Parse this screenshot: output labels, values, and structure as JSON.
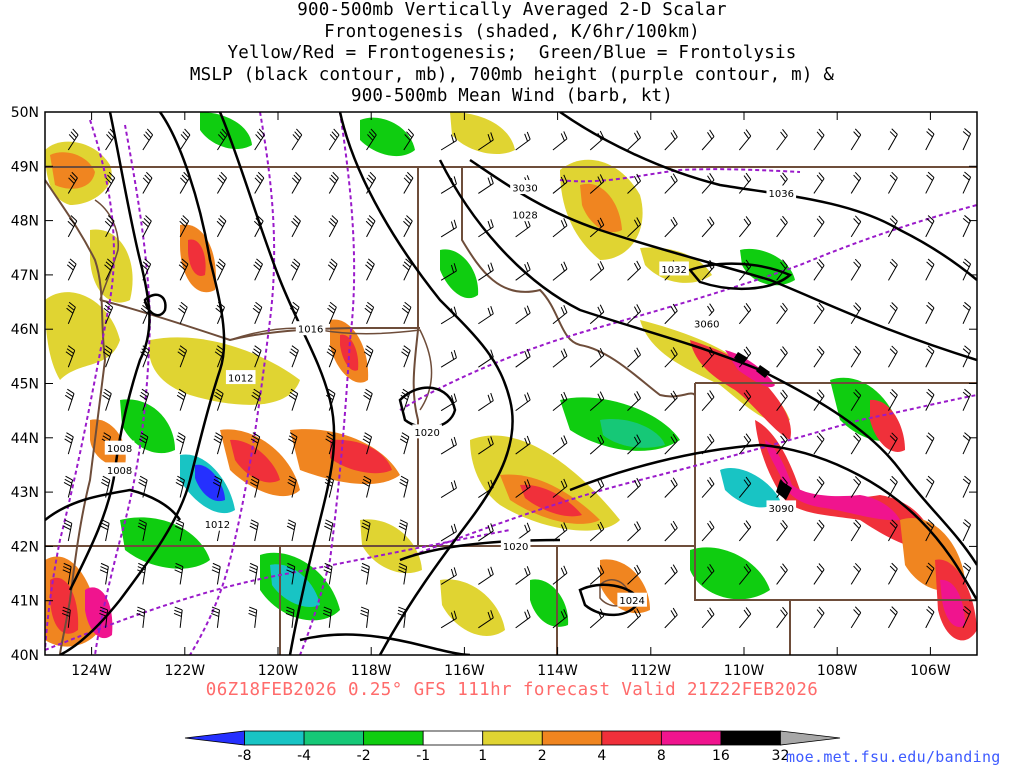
{
  "title": {
    "lines": [
      "900-500mb Vertically Averaged 2-D Scalar",
      "Frontogenesis (shaded, K/6hr/100km)",
      "Yellow/Red = Frontogenesis;  Green/Blue = Frontolysis",
      "MSLP (black contour, mb), 700mb height (purple contour, m) &",
      "900-500mb Mean Wind (barb, kt)"
    ]
  },
  "model_run_line": "06Z18FEB2026 0.25° GFS 111hr forecast Valid 21Z22FEB2026",
  "website": "moe.met.fsu.edu/banding",
  "colors": {
    "run_text": "#ff6b6b",
    "website_text": "#3d5aff",
    "mslp_contour": "#000000",
    "height_contour": "#9a1aca",
    "borders": "#6e4d3a"
  },
  "map": {
    "lon_range": [
      -125.0,
      -105.0
    ],
    "lat_range": [
      40.0,
      50.0
    ],
    "lon_ticks": [
      {
        "value": -124,
        "label": "124W"
      },
      {
        "value": -122,
        "label": "122W"
      },
      {
        "value": -120,
        "label": "120W"
      },
      {
        "value": -118,
        "label": "118W"
      },
      {
        "value": -116,
        "label": "116W"
      },
      {
        "value": -114,
        "label": "114W"
      },
      {
        "value": -112,
        "label": "112W"
      },
      {
        "value": -110,
        "label": "110W"
      },
      {
        "value": -108,
        "label": "108W"
      },
      {
        "value": -106,
        "label": "106W"
      }
    ],
    "lat_ticks": [
      {
        "value": 40,
        "label": "40N"
      },
      {
        "value": 41,
        "label": "41N"
      },
      {
        "value": 42,
        "label": "42N"
      },
      {
        "value": 43,
        "label": "43N"
      },
      {
        "value": 44,
        "label": "44N"
      },
      {
        "value": 45,
        "label": "45N"
      },
      {
        "value": 46,
        "label": "46N"
      },
      {
        "value": 47,
        "label": "47N"
      },
      {
        "value": 48,
        "label": "48N"
      },
      {
        "value": 49,
        "label": "49N"
      },
      {
        "value": 50,
        "label": "50N"
      }
    ],
    "mslp_labels": [
      {
        "text": "1036",
        "lon": -109.2,
        "lat": 48.5
      },
      {
        "text": "1032",
        "lon": -111.5,
        "lat": 47.1
      },
      {
        "text": "1028",
        "lon": -114.7,
        "lat": 48.1
      },
      {
        "text": "1016",
        "lon": -119.3,
        "lat": 46.0
      },
      {
        "text": "1012",
        "lon": -120.8,
        "lat": 45.1
      },
      {
        "text": "1008",
        "lon": -123.4,
        "lat": 43.8
      },
      {
        "text": "1008",
        "lon": -123.4,
        "lat": 43.4
      },
      {
        "text": "1012",
        "lon": -121.3,
        "lat": 42.4
      },
      {
        "text": "1020",
        "lon": -116.8,
        "lat": 44.1
      },
      {
        "text": "1020",
        "lon": -114.9,
        "lat": 42.0
      },
      {
        "text": "1024",
        "lon": -112.4,
        "lat": 41.0
      }
    ],
    "height_labels": [
      {
        "text": "3030",
        "lon": -114.7,
        "lat": 48.6
      },
      {
        "text": "3060",
        "lon": -110.8,
        "lat": 46.1
      },
      {
        "text": "3090",
        "lon": -109.2,
        "lat": 42.7
      }
    ]
  },
  "colorbar": {
    "colors": [
      "#2530ff",
      "#18c4c4",
      "#16c877",
      "#0fcd10",
      "#ffffff",
      "#e0d432",
      "#f08520",
      "#f0303a",
      "#f0148e",
      "#000000",
      "#a8a8a8"
    ],
    "labels": [
      "-8",
      "-4",
      "-2",
      "-1",
      "1",
      "2",
      "4",
      "8",
      "16",
      "32"
    ]
  }
}
